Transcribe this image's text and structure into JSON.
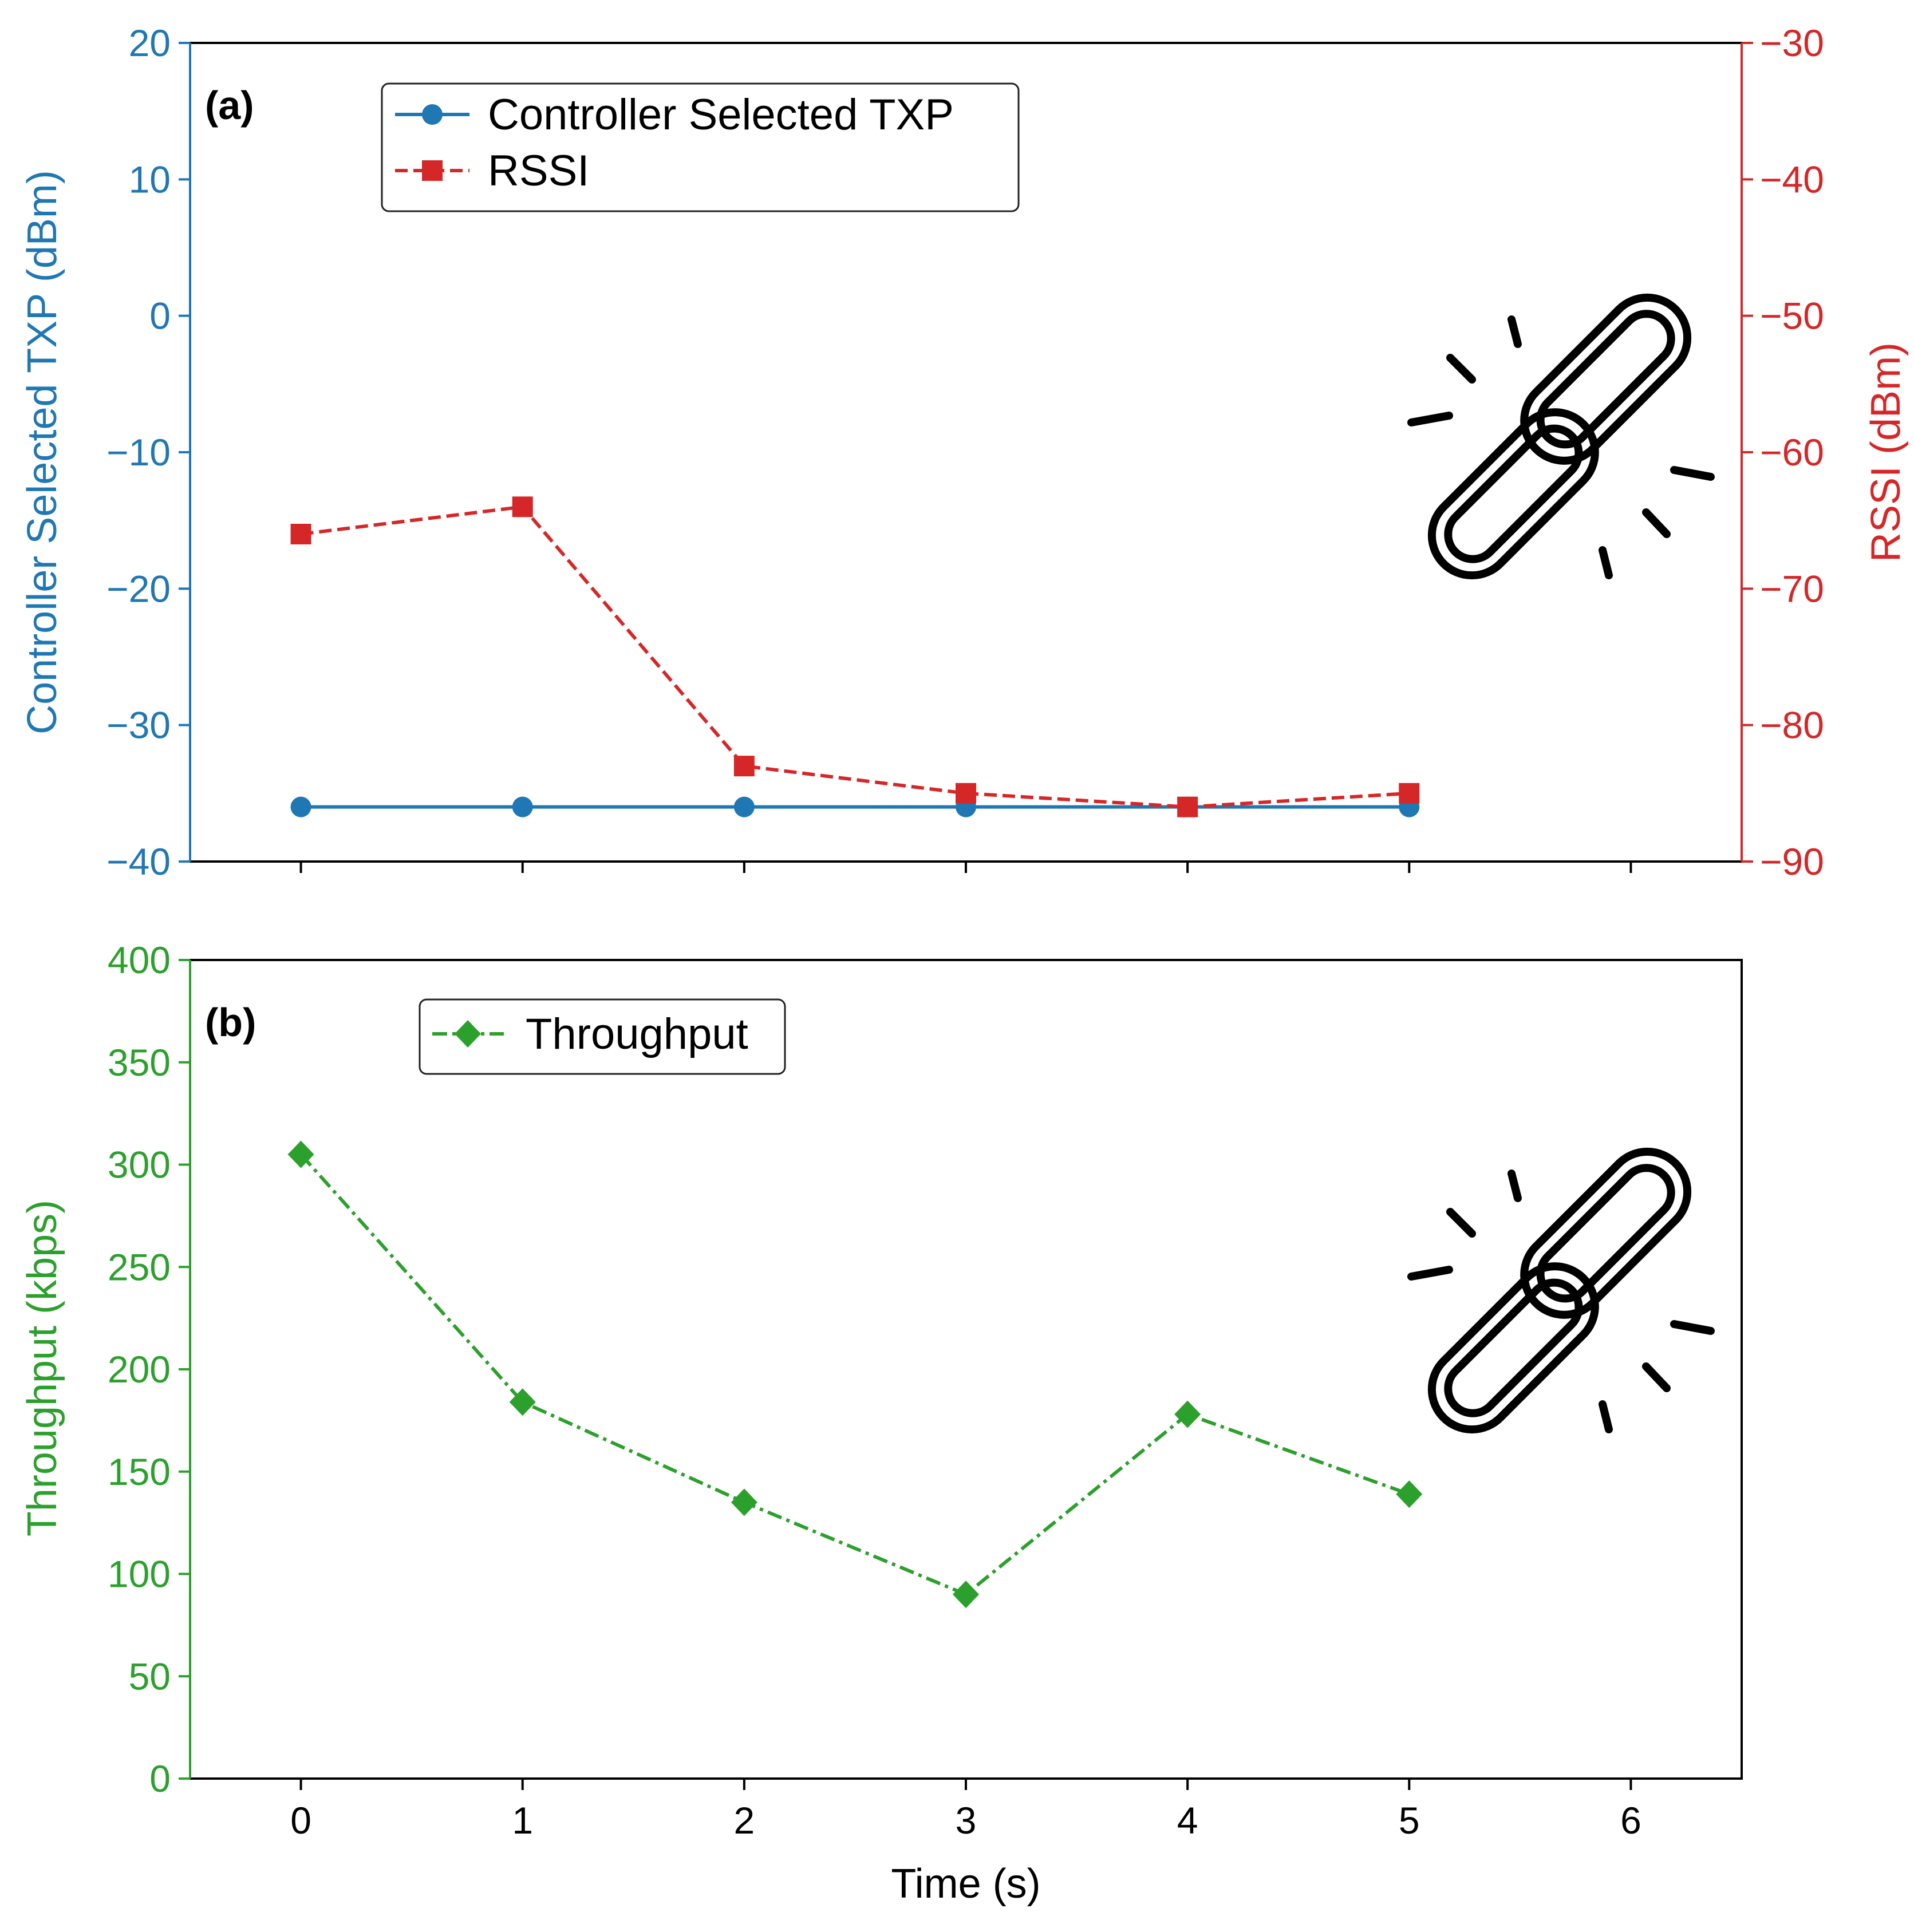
{
  "colors": {
    "txp": "#1f77b4",
    "rssi": "#d62728",
    "throughput": "#2ca02c",
    "axis": "#000000"
  },
  "chart_data": [
    {
      "type": "line",
      "panel_label": "(a)",
      "x": [
        0,
        1,
        2,
        3,
        4,
        5
      ],
      "xlim": [
        -0.5,
        6.5
      ],
      "xticks": [
        0,
        1,
        2,
        3,
        4,
        5,
        6
      ],
      "ylabel": "Controller Selected TXP (dBm)",
      "ylim": [
        -40,
        20
      ],
      "yticks": [
        20,
        10,
        0,
        -10,
        -20,
        -30,
        -40
      ],
      "ytick_labels": [
        "20",
        "10",
        "0",
        "−10",
        "−20",
        "−30",
        "−40"
      ],
      "y2label": "RSSI (dBm)",
      "y2lim": [
        -90,
        -30
      ],
      "y2ticks": [
        -30,
        -40,
        -50,
        -60,
        -70,
        -80,
        -90
      ],
      "y2tick_labels": [
        "−30",
        "−40",
        "−50",
        "−60",
        "−70",
        "−80",
        "−90"
      ],
      "legend_location": "upper-left",
      "annotation_icon": "broken-chain-icon",
      "series": [
        {
          "name": "Controller Selected TXP",
          "axis": "left",
          "values": [
            -36,
            -36,
            -36,
            -36,
            -36,
            -36
          ],
          "marker": "circle",
          "linestyle": "solid",
          "color": "#1f77b4"
        },
        {
          "name": "RSSI",
          "axis": "right",
          "values": [
            -66,
            -64,
            -83,
            -85,
            -86,
            -85
          ],
          "marker": "square",
          "linestyle": "dashed",
          "color": "#d62728"
        }
      ]
    },
    {
      "type": "line",
      "panel_label": "(b)",
      "x": [
        0,
        1,
        2,
        3,
        4,
        5
      ],
      "xlim": [
        -0.5,
        6.5
      ],
      "xticks": [
        0,
        1,
        2,
        3,
        4,
        5,
        6
      ],
      "xtick_labels": [
        "0",
        "1",
        "2",
        "3",
        "4",
        "5",
        "6"
      ],
      "xlabel": "Time (s)",
      "ylabel": "Throughput (kbps)",
      "ylim": [
        0,
        400
      ],
      "yticks": [
        400,
        350,
        300,
        250,
        200,
        150,
        100,
        50,
        0
      ],
      "ytick_labels": [
        "400",
        "350",
        "300",
        "250",
        "200",
        "150",
        "100",
        "50",
        "0"
      ],
      "legend_location": "upper-left",
      "annotation_icon": "broken-chain-icon",
      "series": [
        {
          "name": "Throughput",
          "axis": "left",
          "values": [
            305,
            184,
            135,
            90,
            178,
            139
          ],
          "marker": "diamond",
          "linestyle": "dashdot",
          "color": "#2ca02c"
        }
      ]
    }
  ]
}
